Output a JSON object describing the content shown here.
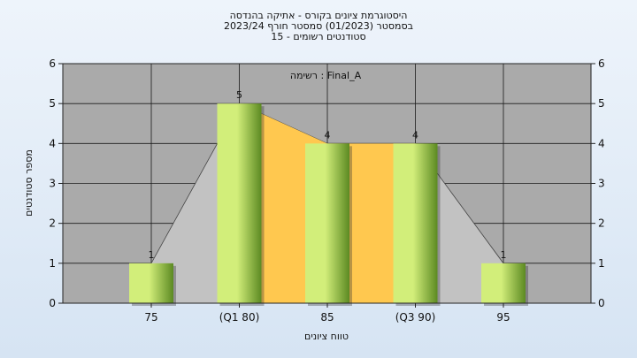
{
  "chart_data": {
    "type": "bar",
    "title_lines": [
      "היסטוגרמת ציונים בקורס - אתיקה בהנדסה",
      "בסמסטר  (01/2023)  סמסטר חורף  2023/24",
      "סטודנטים רשומים - 15"
    ],
    "legend_text": "רשימה : Final_A",
    "xlabel": "טווח ציונים",
    "ylabel": "מספר סטודנטים",
    "categories": [
      "75",
      "(Q1 80)",
      "85",
      "(Q3 90)",
      "95"
    ],
    "values": [
      1,
      5,
      4,
      4,
      1
    ],
    "data_labels": [
      "1",
      "5",
      "4",
      "4",
      "1"
    ],
    "yticks": [
      "0",
      "1",
      "2",
      "3",
      "4",
      "5",
      "6"
    ],
    "ylim": [
      0,
      6
    ],
    "grid": true,
    "colors": {
      "bar_light": "#d2ee7a",
      "bar_dark": "#5c8a22",
      "iqr_fill": "#ffc84f",
      "area_fill": "#c2c2c2",
      "plot_bg": "#aaaaaa"
    }
  }
}
